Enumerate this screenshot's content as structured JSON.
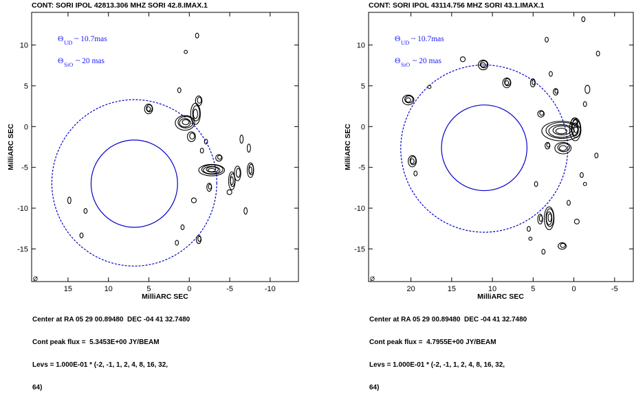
{
  "chart_data": [
    {
      "type": "contour",
      "title": "CONT: SORI  IPOL  42813.306 MHZ  SORI 42.8.IMAX.1",
      "xlabel": "MilliARC SEC",
      "ylabel": "MilliARC SEC",
      "xlim": [
        19.5,
        -13.5
      ],
      "ylim": [
        -19,
        14
      ],
      "xticks": [
        15,
        10,
        5,
        0,
        -5,
        -10
      ],
      "yticks": [
        10,
        5,
        0,
        -5,
        -10,
        -15
      ],
      "corner_mark": "Ø",
      "annotations": [
        {
          "symbol": "Θ",
          "sub": "UD",
          "text": "~ 10.7mas"
        },
        {
          "symbol": "Θ",
          "sub": "SiO",
          "text": "~ 20   mas"
        }
      ],
      "circles": [
        {
          "style": "solid",
          "color": "#0000cc",
          "center": [
            6.8,
            -7.0
          ],
          "radius": 5.35
        },
        {
          "style": "dashed",
          "color": "#0000cc",
          "center": [
            6.8,
            -6.9
          ],
          "radius": 10.2
        }
      ],
      "contour_blobs": [
        {
          "center": [
            5.0,
            2.2
          ],
          "size": [
            0.5,
            0.6
          ],
          "rings": 3
        },
        {
          "center": [
            0.5,
            0.5
          ],
          "size": [
            1.2,
            0.9
          ],
          "rings": 4
        },
        {
          "center": [
            -0.8,
            1.6
          ],
          "size": [
            0.6,
            1.3
          ],
          "rings": 3
        },
        {
          "center": [
            -1.2,
            3.2
          ],
          "size": [
            0.4,
            0.6
          ],
          "rings": 2
        },
        {
          "center": [
            -0.3,
            -1.2
          ],
          "size": [
            0.5,
            0.6
          ],
          "rings": 2
        },
        {
          "center": [
            -2.8,
            -5.3
          ],
          "size": [
            1.6,
            0.7
          ],
          "rings": 5
        },
        {
          "center": [
            -3.7,
            -3.8
          ],
          "size": [
            0.4,
            0.4
          ],
          "rings": 2
        },
        {
          "center": [
            -5.3,
            -6.6
          ],
          "size": [
            0.4,
            1.1
          ],
          "rings": 3
        },
        {
          "center": [
            -6.0,
            -5.7
          ],
          "size": [
            0.4,
            0.9
          ],
          "rings": 2
        },
        {
          "center": [
            -7.6,
            -5.3
          ],
          "size": [
            0.4,
            0.9
          ],
          "rings": 3
        },
        {
          "center": [
            -5.0,
            -8.0
          ],
          "size": [
            0.3,
            0.3
          ],
          "rings": 1
        },
        {
          "center": [
            -2.5,
            -7.4
          ],
          "size": [
            0.3,
            0.5
          ],
          "rings": 2
        },
        {
          "center": [
            -0.6,
            -9.0
          ],
          "size": [
            0.3,
            0.3
          ],
          "rings": 1
        },
        {
          "center": [
            0.8,
            -12.3
          ],
          "size": [
            0.2,
            0.3
          ],
          "rings": 1
        },
        {
          "center": [
            -1.2,
            -13.8
          ],
          "size": [
            0.3,
            0.5
          ],
          "rings": 2
        },
        {
          "center": [
            1.5,
            -14.2
          ],
          "size": [
            0.2,
            0.3
          ],
          "rings": 1
        },
        {
          "center": [
            13.3,
            -13.3
          ],
          "size": [
            0.2,
            0.3
          ],
          "rings": 1
        },
        {
          "center": [
            14.8,
            -9.0
          ],
          "size": [
            0.2,
            0.4
          ],
          "rings": 1
        },
        {
          "center": [
            12.8,
            -10.3
          ],
          "size": [
            0.2,
            0.3
          ],
          "rings": 1
        },
        {
          "center": [
            1.2,
            4.5
          ],
          "size": [
            0.2,
            0.3
          ],
          "rings": 1
        },
        {
          "center": [
            0.4,
            9.2
          ],
          "size": [
            0.2,
            0.2
          ],
          "rings": 1
        },
        {
          "center": [
            -1.0,
            11.2
          ],
          "size": [
            0.2,
            0.3
          ],
          "rings": 1
        },
        {
          "center": [
            -6.5,
            -1.5
          ],
          "size": [
            0.2,
            0.5
          ],
          "rings": 1
        },
        {
          "center": [
            -7.4,
            -2.6
          ],
          "size": [
            0.2,
            0.5
          ],
          "rings": 1
        },
        {
          "center": [
            -7.0,
            -10.3
          ],
          "size": [
            0.2,
            0.4
          ],
          "rings": 1
        },
        {
          "center": [
            -2.1,
            -1.8
          ],
          "size": [
            0.2,
            0.3
          ],
          "rings": 1
        },
        {
          "center": [
            -1.6,
            -2.9
          ],
          "size": [
            0.2,
            0.3
          ],
          "rings": 1
        }
      ],
      "footer": [
        "Center at RA 05 29 00.89480  DEC -04 41 32.7480",
        "Cont peak flux =  5.3453E+00 JY/BEAM",
        "Levs = 1.000E-01 * (-2, -1, 1, 2, 4, 8, 16, 32,",
        "64)"
      ]
    },
    {
      "type": "contour",
      "title": "CONT: SORI  IPOL  43114.756 MHZ  SORI 43.1.IMAX.1",
      "xlabel": "MilliARC SEC",
      "ylabel": "MilliARC SEC",
      "xlim": [
        25.2,
        -7.3
      ],
      "ylim": [
        -19,
        14
      ],
      "xticks": [
        20,
        15,
        10,
        5,
        0,
        -5
      ],
      "yticks": [
        10,
        5,
        0,
        -5,
        -10,
        -15
      ],
      "corner_mark": "Ø",
      "annotations": [
        {
          "symbol": "Θ",
          "sub": "UD",
          "text": "~ 10.7mas"
        },
        {
          "symbol": "Θ",
          "sub": "SiO",
          "text": "~ 20   mas"
        }
      ],
      "circles": [
        {
          "style": "solid",
          "color": "#0000cc",
          "center": [
            11.0,
            -2.6
          ],
          "radius": 5.25
        },
        {
          "style": "dashed",
          "color": "#0000cc",
          "center": [
            11.0,
            -2.7
          ],
          "radius": 10.25
        }
      ],
      "contour_blobs": [
        {
          "center": [
            20.3,
            3.3
          ],
          "size": [
            0.7,
            0.6
          ],
          "rings": 3
        },
        {
          "center": [
            19.8,
            -4.2
          ],
          "size": [
            0.5,
            0.7
          ],
          "rings": 3
        },
        {
          "center": [
            19.4,
            -5.7
          ],
          "size": [
            0.2,
            0.3
          ],
          "rings": 1
        },
        {
          "center": [
            17.7,
            4.9
          ],
          "size": [
            0.2,
            0.2
          ],
          "rings": 1
        },
        {
          "center": [
            13.6,
            8.3
          ],
          "size": [
            0.3,
            0.3
          ],
          "rings": 1
        },
        {
          "center": [
            11.1,
            7.6
          ],
          "size": [
            0.6,
            0.6
          ],
          "rings": 3
        },
        {
          "center": [
            8.2,
            5.4
          ],
          "size": [
            0.5,
            0.6
          ],
          "rings": 3
        },
        {
          "center": [
            5.0,
            5.4
          ],
          "size": [
            0.3,
            0.5
          ],
          "rings": 2
        },
        {
          "center": [
            4.0,
            1.6
          ],
          "size": [
            0.4,
            0.4
          ],
          "rings": 2
        },
        {
          "center": [
            2.8,
            6.5
          ],
          "size": [
            0.2,
            0.3
          ],
          "rings": 1
        },
        {
          "center": [
            2.2,
            4.3
          ],
          "size": [
            0.3,
            0.4
          ],
          "rings": 2
        },
        {
          "center": [
            1.5,
            -0.5
          ],
          "size": [
            2.4,
            1.2
          ],
          "rings": 5
        },
        {
          "center": [
            -0.2,
            -0.3
          ],
          "size": [
            0.7,
            1.4
          ],
          "rings": 4
        },
        {
          "center": [
            -0.1,
            0.5
          ],
          "size": [
            0.4,
            0.6
          ],
          "rings": 2
        },
        {
          "center": [
            1.3,
            -2.6
          ],
          "size": [
            1.0,
            0.7
          ],
          "rings": 3
        },
        {
          "center": [
            3.2,
            -2.3
          ],
          "size": [
            0.3,
            0.4
          ],
          "rings": 2
        },
        {
          "center": [
            3.0,
            -11.2
          ],
          "size": [
            0.6,
            1.4
          ],
          "rings": 4
        },
        {
          "center": [
            4.1,
            -11.3
          ],
          "size": [
            0.3,
            0.6
          ],
          "rings": 2
        },
        {
          "center": [
            4.6,
            -7.0
          ],
          "size": [
            0.2,
            0.3
          ],
          "rings": 1
        },
        {
          "center": [
            0.6,
            -9.3
          ],
          "size": [
            0.2,
            0.3
          ],
          "rings": 1
        },
        {
          "center": [
            -0.4,
            -11.6
          ],
          "size": [
            0.3,
            0.3
          ],
          "rings": 1
        },
        {
          "center": [
            1.4,
            -14.6
          ],
          "size": [
            0.5,
            0.4
          ],
          "rings": 2
        },
        {
          "center": [
            3.7,
            -15.3
          ],
          "size": [
            0.2,
            0.3
          ],
          "rings": 1
        },
        {
          "center": [
            5.3,
            -13.7
          ],
          "size": [
            0.2,
            0.2
          ],
          "rings": 1
        },
        {
          "center": [
            3.3,
            10.7
          ],
          "size": [
            0.2,
            0.3
          ],
          "rings": 1
        },
        {
          "center": [
            -1.2,
            13.2
          ],
          "size": [
            0.2,
            0.3
          ],
          "rings": 1
        },
        {
          "center": [
            -1.7,
            4.6
          ],
          "size": [
            0.3,
            0.5
          ],
          "rings": 1
        },
        {
          "center": [
            -1.4,
            2.8
          ],
          "size": [
            0.2,
            0.3
          ],
          "rings": 1
        },
        {
          "center": [
            -2.8,
            -3.5
          ],
          "size": [
            0.2,
            0.3
          ],
          "rings": 1
        },
        {
          "center": [
            -1.0,
            -5.9
          ],
          "size": [
            0.2,
            0.3
          ],
          "rings": 1
        },
        {
          "center": [
            -1.4,
            -7.0
          ],
          "size": [
            0.2,
            0.2
          ],
          "rings": 1
        },
        {
          "center": [
            -3.0,
            9.0
          ],
          "size": [
            0.2,
            0.3
          ],
          "rings": 1
        },
        {
          "center": [
            5.5,
            -12.5
          ],
          "size": [
            0.2,
            0.3
          ],
          "rings": 1
        }
      ],
      "footer": [
        "Center at RA 05 29 00.89480  DEC -04 41 32.7480",
        "Cont peak flux =  4.7955E+00 JY/BEAM",
        "Levs = 1.000E-01 * (-2, -1, 1, 2, 4, 8, 16, 32,",
        "64)"
      ]
    }
  ]
}
